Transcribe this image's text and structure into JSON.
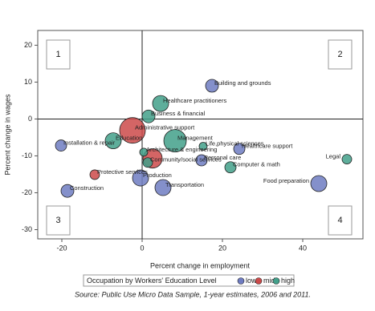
{
  "chart_data": {
    "type": "bubble",
    "x_label": "Percent change in employment",
    "y_label": "Percent change in wages",
    "legend_title": "Occupation by Workers' Education Level",
    "source": "Source: Public Use Micro Data Sample, 1-year estimates, 2006 and 2011.",
    "quadrant_labels": [
      "1",
      "2",
      "3",
      "4"
    ],
    "xlim": [
      -26,
      55
    ],
    "ylim": [
      -32.5,
      24
    ],
    "xticks": [
      -20,
      0,
      20,
      40
    ],
    "yticks": [
      -30,
      -20,
      -10,
      0,
      10,
      20
    ],
    "series": [
      {
        "name": "low",
        "color": "#6f7cc2",
        "label_color": "#2b3a8f",
        "labels": [
          "Building and grounds",
          "Installation & repair",
          "Healthcare support",
          "Personal care",
          "Production",
          "Food preparation",
          "Transportation",
          "Construction"
        ],
        "x": [
          17.4,
          -20.2,
          24.2,
          14.8,
          -0.4,
          44,
          5.2,
          -18.6
        ],
        "values": [
          9.0,
          -7.2,
          -8.1,
          -11.2,
          -16.0,
          -17.5,
          -18.6,
          -19.5
        ],
        "sizes": [
          8,
          7,
          7,
          7,
          10,
          10,
          10,
          8
        ]
      },
      {
        "name": "mid",
        "color": "#cc4a4a",
        "label_color": "#b02a2a",
        "labels": [
          "Administrative support",
          null,
          "Protective services"
        ],
        "x": [
          -2.4,
          2.6,
          -11.8
        ],
        "values": [
          -3.1,
          -10.7,
          -15.1
        ],
        "sizes": [
          16,
          12,
          6
        ]
      },
      {
        "name": "high",
        "color": "#42a08a",
        "label_color": "#1d7566",
        "labels": [
          "Healthcare practitioners",
          "Business & financial",
          "Education",
          "Management",
          "Life,physical sciences",
          "Legal",
          "Architecture & engineering",
          "Computer & math",
          "Community/social services"
        ],
        "x": [
          4.6,
          1.6,
          -7.2,
          8.2,
          15.2,
          51,
          0.4,
          22,
          1.4
        ],
        "values": [
          4.2,
          0.7,
          -5.9,
          -5.9,
          -7.4,
          -10.9,
          -9.0,
          -13.1,
          -11.8
        ],
        "sizes": [
          10,
          8,
          10,
          14,
          5,
          6,
          5,
          7,
          6
        ]
      }
    ]
  }
}
